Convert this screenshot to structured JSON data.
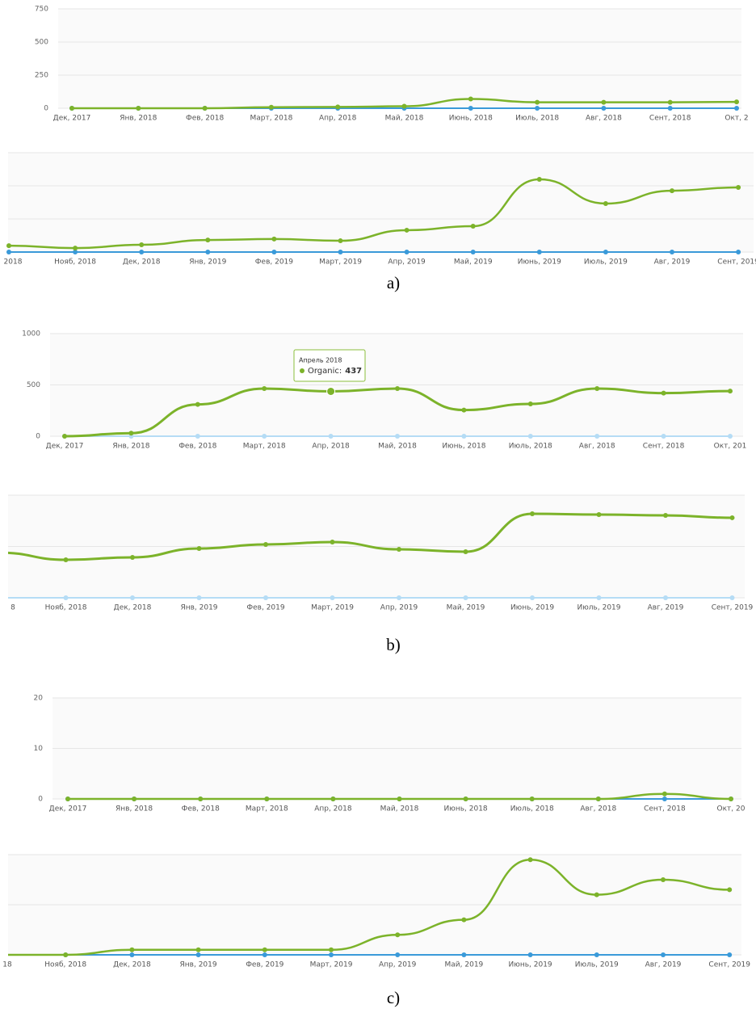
{
  "chart_data": [
    {
      "type": "line",
      "categories": [
        "Дек, 2017",
        "Янв, 2018",
        "Фев, 2018",
        "Март, 2018",
        "Апр, 2018",
        "Май, 2018",
        "Июнь, 2018",
        "Июль, 2018",
        "Авг, 2018",
        "Сент, 2018",
        "Окт, 2"
      ],
      "series": [
        {
          "name": "Organic",
          "color": "#7cb32a",
          "values": [
            0,
            0,
            0,
            8,
            10,
            15,
            70,
            45,
            45,
            45,
            48
          ]
        },
        {
          "color": "#3a9ad9",
          "values": [
            0,
            0,
            0,
            0,
            0,
            0,
            0,
            0,
            0,
            0,
            0
          ]
        }
      ],
      "ylim": [
        0,
        750
      ],
      "yticks": [
        0,
        250,
        500,
        750
      ],
      "ytick_labels": true,
      "grid": true
    },
    {
      "type": "line",
      "categories": [
        "2018",
        "Нояб, 2018",
        "Дек, 2018",
        "Янв, 2019",
        "Фев, 2019",
        "Март, 2019",
        "Апр, 2019",
        "Май, 2019",
        "Июнь, 2019",
        "Июль, 2019",
        "Авг, 2019",
        "Сент, 2019"
      ],
      "series": [
        {
          "name": "Organic",
          "color": "#7cb32a",
          "values": [
            48,
            30,
            55,
            91,
            98,
            85,
            165,
            195,
            549,
            366,
            463,
            488
          ]
        },
        {
          "color": "#3a9ad9",
          "values": [
            0,
            0,
            0,
            0,
            0,
            0,
            0,
            0,
            0,
            0,
            0,
            0
          ]
        }
      ],
      "ylim": [
        0,
        750
      ],
      "yticks": [
        0,
        250,
        500,
        750
      ],
      "ytick_labels": false,
      "grid": true,
      "caption": "a)"
    },
    {
      "type": "line",
      "categories": [
        "Дек, 2017",
        "Янв, 2018",
        "Фев, 2018",
        "Март, 2018",
        "Апр, 2018",
        "Май, 2018",
        "Июнь, 2018",
        "Июль, 2018",
        "Авг, 2018",
        "Сент, 2018",
        "Окт, 201"
      ],
      "series": [
        {
          "name": "Organic",
          "color": "#7cb32a",
          "values": [
            0,
            30,
            310,
            465,
            437,
            465,
            255,
            315,
            465,
            420,
            440
          ]
        },
        {
          "color": "#b5dcf5",
          "values": [
            0,
            0,
            0,
            0,
            0,
            0,
            0,
            0,
            0,
            0,
            0
          ]
        }
      ],
      "ylim": [
        0,
        1000
      ],
      "yticks": [
        0,
        500,
        1000
      ],
      "ytick_labels": true,
      "grid": true,
      "tooltip": {
        "title": "Апрель 2018",
        "label": "Organic:"
      }
    },
    {
      "type": "line",
      "categories": [
        "8",
        "Нояб, 2018",
        "Дек, 2018",
        "Янв, 2019",
        "Фев, 2019",
        "Март, 2019",
        "Апр, 2019",
        "Май, 2019",
        "Июнь, 2019",
        "Июль, 2019",
        "Авг, 2019",
        "Сент, 2019"
      ],
      "series": [
        {
          "name": "Organic",
          "color": "#7cb32a",
          "values": [
            440,
            370,
            394,
            480,
            520,
            543,
            472,
            449,
            819,
            811,
            803,
            780
          ]
        },
        {
          "color": "#b5dcf5",
          "values": [
            0,
            0,
            0,
            0,
            0,
            0,
            0,
            0,
            0,
            0,
            0,
            0
          ]
        }
      ],
      "ylim": [
        0,
        1000
      ],
      "yticks": [
        0,
        500,
        1000
      ],
      "ytick_labels": false,
      "grid": true,
      "caption": "b)"
    },
    {
      "type": "line",
      "categories": [
        "Дек, 2017",
        "Янв, 2018",
        "Фев, 2018",
        "Март, 2018",
        "Апр, 2018",
        "Май, 2018",
        "Июнь, 2018",
        "Июль, 2018",
        "Авг, 2018",
        "Сент, 2018",
        "Окт, 20"
      ],
      "series": [
        {
          "name": "Organic",
          "color": "#7cb32a",
          "values": [
            0,
            0,
            0,
            0,
            0,
            0,
            0,
            0,
            0,
            1,
            0
          ]
        },
        {
          "color": "#3a9ad9",
          "values": [
            0,
            0,
            0,
            0,
            0,
            0,
            0,
            0,
            0,
            0,
            0
          ]
        }
      ],
      "ylim": [
        0,
        20
      ],
      "yticks": [
        0,
        10,
        20
      ],
      "ytick_labels": true,
      "grid": true
    },
    {
      "type": "line",
      "categories": [
        "18",
        "Нояб, 2018",
        "Дек, 2018",
        "Янв, 2019",
        "Фев, 2019",
        "Март, 2019",
        "Апр, 2019",
        "Май, 2019",
        "Июнь, 2019",
        "Июль, 2019",
        "Авг, 2019",
        "Сент, 2019"
      ],
      "series": [
        {
          "name": "Organic",
          "color": "#7cb32a",
          "values": [
            0,
            0,
            1,
            1,
            1,
            1,
            4,
            7,
            19,
            12,
            15,
            13
          ]
        },
        {
          "color": "#3a9ad9",
          "values": [
            0,
            0,
            0,
            0,
            0,
            0,
            0,
            0,
            0,
            0,
            0,
            0
          ]
        }
      ],
      "ylim": [
        0,
        20
      ],
      "yticks": [
        0,
        10,
        20
      ],
      "ytick_labels": false,
      "grid": true,
      "caption": "c)"
    }
  ]
}
